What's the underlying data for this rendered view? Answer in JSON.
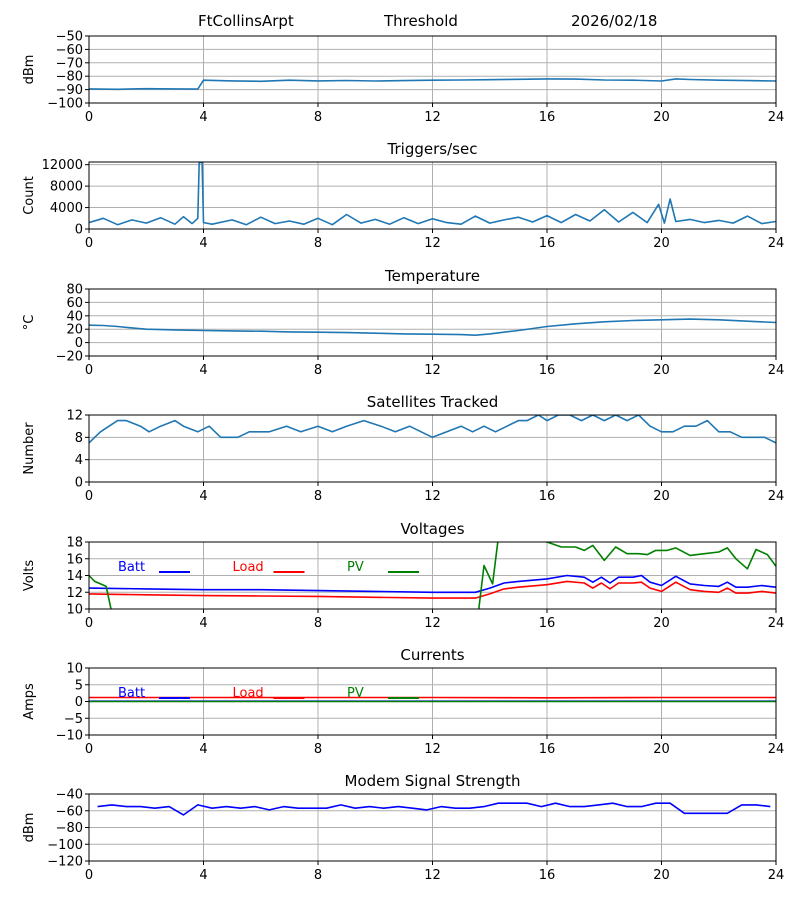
{
  "header": {
    "station": "FtCollinsArpt",
    "mode": "Threshold",
    "date": "2026/02/18"
  },
  "colors": {
    "series_default": "#1f77b4",
    "batt": "#0000ff",
    "load": "#ff0000",
    "pv": "#008000",
    "grid": "#b0b0b0"
  },
  "chart_data": [
    {
      "id": "threshold",
      "type": "line",
      "title": "",
      "ylabel": "dBm",
      "xlim": [
        0,
        24
      ],
      "xticks": [
        0,
        4,
        8,
        12,
        16,
        20,
        24
      ],
      "ylim": [
        -100,
        -50
      ],
      "yticks": [
        -100,
        -90,
        -80,
        -70,
        -60,
        -50
      ],
      "series": [
        {
          "name": "Threshold",
          "color": "#1f77b4",
          "x": [
            0,
            1,
            2,
            3,
            3.8,
            4.0,
            5,
            6,
            7,
            8,
            9,
            10,
            11,
            12,
            13,
            14,
            15,
            16,
            17,
            18,
            19,
            20,
            20.5,
            21,
            22,
            23,
            24
          ],
          "y": [
            -89.5,
            -89.8,
            -89.3,
            -89.5,
            -89.6,
            -83,
            -83.5,
            -83.8,
            -83,
            -83.5,
            -83.2,
            -83.6,
            -83.3,
            -83,
            -82.8,
            -82.6,
            -82.3,
            -82,
            -82.2,
            -82.8,
            -83,
            -83.6,
            -82,
            -82.5,
            -83,
            -83.3,
            -83.6
          ]
        }
      ]
    },
    {
      "id": "triggers",
      "type": "line",
      "title": "Triggers/sec",
      "ylabel": "Count",
      "xlim": [
        0,
        24
      ],
      "xticks": [
        0,
        4,
        8,
        12,
        16,
        20,
        24
      ],
      "ylim": [
        0,
        12500
      ],
      "yticks": [
        0,
        4000,
        8000,
        12000
      ],
      "series": [
        {
          "name": "Triggers",
          "color": "#1f77b4",
          "x": [
            0,
            0.5,
            1,
            1.5,
            2,
            2.5,
            3,
            3.3,
            3.6,
            3.8,
            3.85,
            3.95,
            4.0,
            4.3,
            5,
            5.5,
            6,
            6.5,
            7,
            7.5,
            8,
            8.5,
            9,
            9.5,
            10,
            10.5,
            11,
            11.5,
            12,
            12.5,
            13,
            13.5,
            14,
            14.5,
            15,
            15.5,
            16,
            16.5,
            17,
            17.5,
            18,
            18.5,
            19,
            19.5,
            19.9,
            20.1,
            20.3,
            20.5,
            21,
            21.5,
            22,
            22.5,
            23,
            23.5,
            24
          ],
          "y": [
            1200,
            2000,
            800,
            1700,
            1100,
            2100,
            900,
            2300,
            1000,
            2000,
            12400,
            12400,
            1200,
            900,
            1700,
            800,
            2200,
            1000,
            1500,
            900,
            2000,
            800,
            2700,
            1100,
            1800,
            900,
            2100,
            1000,
            1900,
            1200,
            900,
            2400,
            1100,
            1700,
            2200,
            1300,
            2500,
            1200,
            2700,
            1500,
            3600,
            1300,
            3100,
            1200,
            4600,
            1100,
            5600,
            1400,
            1800,
            1200,
            1600,
            1100,
            2400,
            1000,
            1400
          ]
        }
      ]
    },
    {
      "id": "temperature",
      "type": "line",
      "title": "Temperature",
      "ylabel": "°C",
      "xlim": [
        0,
        24
      ],
      "xticks": [
        0,
        4,
        8,
        12,
        16,
        20,
        24
      ],
      "ylim": [
        -20,
        80
      ],
      "yticks": [
        -20,
        0,
        20,
        40,
        60,
        80
      ],
      "series": [
        {
          "name": "Temperature",
          "color": "#1f77b4",
          "x": [
            0,
            0.5,
            1,
            1.5,
            2,
            3,
            4,
            5,
            6,
            7,
            8,
            9,
            10,
            11,
            12,
            13,
            13.5,
            14,
            15,
            16,
            17,
            18,
            19,
            20,
            21,
            22,
            23,
            24
          ],
          "y": [
            26,
            25.5,
            24,
            22,
            20,
            19,
            18,
            17.5,
            17,
            16,
            15.5,
            15,
            14,
            13,
            12.5,
            12,
            11,
            13,
            18,
            24,
            28,
            31,
            33,
            34,
            35,
            34,
            32,
            30
          ]
        }
      ]
    },
    {
      "id": "satellites",
      "type": "line",
      "title": "Satellites Tracked",
      "ylabel": "Number",
      "xlim": [
        0,
        24
      ],
      "xticks": [
        0,
        4,
        8,
        12,
        16,
        20,
        24
      ],
      "ylim": [
        0,
        12
      ],
      "yticks": [
        0,
        4,
        8,
        12
      ],
      "series": [
        {
          "name": "Satellites",
          "color": "#1f77b4",
          "x": [
            0,
            0.2,
            0.4,
            0.7,
            1.0,
            1.3,
            1.8,
            2.1,
            2.5,
            3.0,
            3.3,
            3.8,
            4.2,
            4.6,
            5.2,
            5.6,
            6.3,
            6.9,
            7.4,
            8.0,
            8.5,
            9.0,
            9.6,
            10.2,
            10.7,
            11.2,
            11.6,
            12.0,
            12.5,
            13.0,
            13.4,
            13.8,
            14.2,
            14.6,
            15.0,
            15.3,
            15.7,
            16.0,
            16.4,
            16.8,
            17.2,
            17.6,
            18.0,
            18.4,
            18.8,
            19.2,
            19.6,
            20.0,
            20.4,
            20.8,
            21.2,
            21.6,
            22.0,
            22.4,
            22.8,
            23.2,
            23.6,
            24
          ],
          "y": [
            7,
            8,
            9,
            10,
            11,
            11,
            10,
            9,
            10,
            11,
            10,
            9,
            10,
            8,
            8,
            9,
            9,
            10,
            9,
            10,
            9,
            10,
            11,
            10,
            9,
            10,
            9,
            8,
            9,
            10,
            9,
            10,
            9,
            10,
            11,
            11,
            12,
            11,
            12,
            12,
            11,
            12,
            11,
            12,
            11,
            12,
            10,
            9,
            9,
            10,
            10,
            11,
            9,
            9,
            8,
            8,
            8,
            7
          ]
        }
      ]
    },
    {
      "id": "voltages",
      "type": "line",
      "title": "Voltages",
      "ylabel": "Volts",
      "xlim": [
        0,
        24
      ],
      "xticks": [
        0,
        4,
        8,
        12,
        16,
        20,
        24
      ],
      "ylim": [
        10,
        18
      ],
      "yticks": [
        10,
        12,
        14,
        16,
        18
      ],
      "legend": [
        "Batt",
        "Load",
        "PV"
      ],
      "series": [
        {
          "name": "Batt",
          "color": "#0000ff",
          "x": [
            0,
            2,
            4,
            6,
            8,
            10,
            12,
            13.5,
            14,
            14.5,
            15,
            16,
            16.7,
            17.3,
            17.6,
            17.9,
            18.2,
            18.5,
            19,
            19.3,
            19.6,
            20,
            20.5,
            21,
            21.5,
            22,
            22.3,
            22.6,
            23,
            23.5,
            24
          ],
          "y": [
            12.5,
            12.4,
            12.3,
            12.3,
            12.2,
            12.1,
            12.0,
            12.0,
            12.5,
            13.1,
            13.3,
            13.6,
            14.0,
            13.8,
            13.2,
            13.8,
            13.1,
            13.8,
            13.8,
            14.0,
            13.2,
            12.8,
            13.9,
            13.0,
            12.8,
            12.7,
            13.2,
            12.6,
            12.6,
            12.8,
            12.6
          ]
        },
        {
          "name": "Load",
          "color": "#ff0000",
          "x": [
            0,
            2,
            4,
            6,
            8,
            10,
            12,
            13.5,
            14,
            14.5,
            15,
            16,
            16.7,
            17.3,
            17.6,
            17.9,
            18.2,
            18.5,
            19,
            19.3,
            19.6,
            20,
            20.5,
            21,
            21.5,
            22,
            22.3,
            22.6,
            23,
            23.5,
            24
          ],
          "y": [
            11.8,
            11.7,
            11.6,
            11.55,
            11.5,
            11.4,
            11.3,
            11.3,
            11.8,
            12.4,
            12.6,
            12.9,
            13.3,
            13.1,
            12.5,
            13.1,
            12.4,
            13.1,
            13.1,
            13.2,
            12.5,
            12.1,
            13.2,
            12.3,
            12.1,
            12.0,
            12.5,
            11.9,
            11.9,
            12.1,
            11.9
          ]
        },
        {
          "name": "PV",
          "color": "#008000",
          "x": [
            0,
            0.2,
            0.4,
            0.6,
            0.8,
            13.6,
            13.8,
            14.1,
            14.3,
            14.5,
            16,
            16.5,
            17,
            17.3,
            17.6,
            18,
            18.4,
            18.8,
            19.2,
            19.5,
            19.8,
            20.2,
            20.5,
            21,
            21.5,
            22,
            22.3,
            22.6,
            23,
            23.3,
            23.7,
            24
          ],
          "y": [
            14.0,
            13.3,
            13.0,
            12.7,
            9.5,
            9.5,
            15.2,
            13.0,
            18.5,
            18.5,
            18.0,
            17.4,
            17.4,
            17.0,
            17.6,
            15.8,
            17.4,
            16.6,
            16.6,
            16.5,
            17.0,
            17.0,
            17.3,
            16.4,
            16.6,
            16.8,
            17.3,
            16.0,
            14.8,
            17.1,
            16.5,
            15.1
          ]
        }
      ]
    },
    {
      "id": "currents",
      "type": "line",
      "title": "Currents",
      "ylabel": "Amps",
      "xlim": [
        0,
        24
      ],
      "xticks": [
        0,
        4,
        8,
        12,
        16,
        20,
        24
      ],
      "ylim": [
        -10,
        10
      ],
      "yticks": [
        -10,
        -5,
        0,
        5,
        10
      ],
      "legend": [
        "Batt",
        "Load",
        "PV"
      ],
      "series": [
        {
          "name": "Batt",
          "color": "#0000ff",
          "x": [
            0,
            24
          ],
          "y": [
            0.1,
            0.1
          ]
        },
        {
          "name": "Load",
          "color": "#ff0000",
          "x": [
            0,
            4,
            8,
            12,
            16,
            20,
            24
          ],
          "y": [
            1.2,
            1.2,
            1.2,
            1.2,
            1.1,
            1.2,
            1.2
          ]
        },
        {
          "name": "PV",
          "color": "#008000",
          "x": [
            0,
            24
          ],
          "y": [
            0,
            0
          ]
        }
      ]
    },
    {
      "id": "modem",
      "type": "line",
      "title": "Modem Signal Strength",
      "ylabel": "dBm",
      "xlim": [
        0,
        24
      ],
      "xticks": [
        0,
        4,
        8,
        12,
        16,
        20,
        24
      ],
      "ylim": [
        -120,
        -40
      ],
      "yticks": [
        -120,
        -100,
        -80,
        -60,
        -40
      ],
      "series": [
        {
          "name": "Modem",
          "color": "#0000ff",
          "x": [
            0.3,
            0.8,
            1.3,
            1.8,
            2.3,
            2.8,
            3.3,
            3.8,
            4.3,
            4.8,
            5.3,
            5.8,
            6.3,
            6.8,
            7.3,
            7.8,
            8.3,
            8.8,
            9.3,
            9.8,
            10.3,
            10.8,
            11.3,
            11.8,
            12.3,
            12.8,
            13.3,
            13.8,
            14.3,
            14.8,
            15.3,
            15.8,
            16.3,
            16.8,
            17.3,
            17.8,
            18.3,
            18.8,
            19.3,
            19.8,
            20.3,
            20.8,
            21.3,
            21.8,
            22.3,
            22.8,
            23.3,
            23.8
          ],
          "y": [
            -55,
            -53,
            -55,
            -55,
            -57,
            -55,
            -65,
            -53,
            -57,
            -55,
            -57,
            -55,
            -59,
            -55,
            -57,
            -57,
            -57,
            -53,
            -57,
            -55,
            -57,
            -55,
            -57,
            -59,
            -55,
            -57,
            -57,
            -55,
            -51,
            -51,
            -51,
            -55,
            -51,
            -55,
            -55,
            -53,
            -51,
            -55,
            -55,
            -51,
            -51,
            -63,
            -63,
            -63,
            -63,
            -53,
            -53,
            -55
          ]
        }
      ]
    }
  ]
}
